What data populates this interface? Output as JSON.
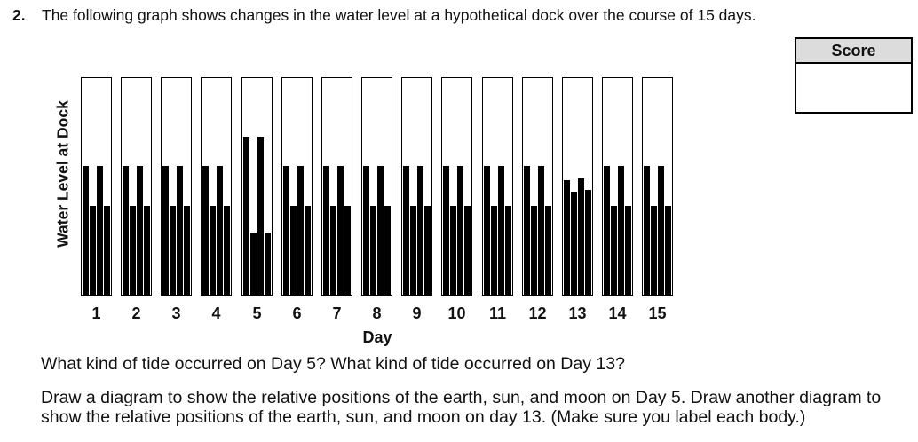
{
  "question": {
    "number": "2.",
    "intro": "The following graph shows changes in the water level at a hypothetical dock over the course of 15 days."
  },
  "score_box": {
    "label": "Score"
  },
  "chart": {
    "y_axis_label": "Water Level at Dock",
    "x_axis_label": "Day"
  },
  "chart_data": {
    "type": "bar",
    "title": "Water level at a hypothetical dock over 15 days",
    "xlabel": "Day",
    "ylabel": "Water Level at Dock",
    "ylim": [
      0,
      100
    ],
    "grid": false,
    "legend": "none",
    "bars_per_day": [
      "high-tide-1",
      "low-tide-1",
      "high-tide-2",
      "low-tide-2"
    ],
    "units": "relative water level, percent of chart height",
    "categories": [
      "1",
      "2",
      "3",
      "4",
      "5",
      "6",
      "7",
      "8",
      "9",
      "10",
      "11",
      "12",
      "13",
      "14",
      "15"
    ],
    "days": [
      {
        "label": "1",
        "bar_heights_pct": [
          59.5,
          41,
          59.5,
          41
        ]
      },
      {
        "label": "2",
        "bar_heights_pct": [
          59.5,
          41,
          59.5,
          41
        ]
      },
      {
        "label": "3",
        "bar_heights_pct": [
          59.5,
          41,
          59.5,
          41
        ]
      },
      {
        "label": "4",
        "bar_heights_pct": [
          59.5,
          41,
          59.5,
          41
        ]
      },
      {
        "label": "5",
        "bar_heights_pct": [
          73,
          28.5,
          73,
          28.5
        ]
      },
      {
        "label": "6",
        "bar_heights_pct": [
          59.5,
          41,
          59.5,
          41
        ]
      },
      {
        "label": "7",
        "bar_heights_pct": [
          59.5,
          41,
          59.5,
          41
        ]
      },
      {
        "label": "8",
        "bar_heights_pct": [
          59.5,
          41,
          59.5,
          41
        ]
      },
      {
        "label": "9",
        "bar_heights_pct": [
          59.5,
          41,
          59.5,
          41
        ]
      },
      {
        "label": "10",
        "bar_heights_pct": [
          59.5,
          41,
          59.5,
          41
        ]
      },
      {
        "label": "11",
        "bar_heights_pct": [
          59.5,
          41,
          59.5,
          41
        ]
      },
      {
        "label": "12",
        "bar_heights_pct": [
          59.5,
          41,
          59.5,
          41
        ]
      },
      {
        "label": "13",
        "bar_heights_pct": [
          53,
          47.5,
          53.5,
          48.5
        ]
      },
      {
        "label": "14",
        "bar_heights_pct": [
          59.5,
          41,
          59.5,
          41
        ]
      },
      {
        "label": "15",
        "bar_heights_pct": [
          59.5,
          41,
          59.5,
          41
        ]
      }
    ]
  },
  "questions": {
    "q1": "What kind of tide occurred on Day 5? What kind of tide occurred on Day 13?",
    "q2": "Draw a diagram to show the relative positions of the earth, sun, and moon on Day 5. Draw another diagram to show the relative positions of the earth, sun, and moon on day 13. (Make sure you label each body.)"
  },
  "colors": {
    "bar": "#000000",
    "box_border": "#000000",
    "score_header_bg": "#dcdcdc",
    "text": "#111111",
    "background": "#ffffff"
  }
}
